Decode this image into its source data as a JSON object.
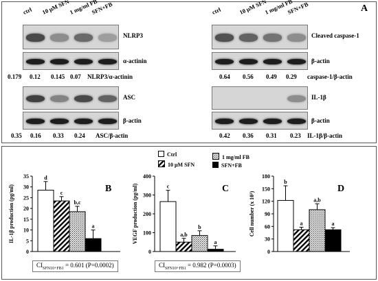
{
  "western": {
    "panel_letter": "A",
    "lanes_left": [
      "ctrl",
      "10 μM SFN",
      "1 mg/ml FB",
      "SFN+FB"
    ],
    "lanes_right": [
      "ctrl",
      "10 μM SFN",
      "1 mg/ml FB",
      "SFN+FB"
    ],
    "blots": [
      {
        "protein": "NLRP3",
        "intensity": [
          0.75,
          0.35,
          0.55,
          0.25
        ]
      },
      {
        "protein": "α-actinin",
        "intensity": [
          1,
          1,
          1,
          1
        ]
      },
      {
        "protein": "ASC",
        "intensity": [
          0.8,
          0.4,
          0.75,
          0.6
        ]
      },
      {
        "protein": "β-actin",
        "intensity": [
          1,
          1,
          1,
          1
        ]
      },
      {
        "protein": "Cleaved caspase-1",
        "intensity": [
          0.7,
          0.6,
          0.5,
          0.35
        ]
      },
      {
        "protein": "β-actin",
        "intensity": [
          1,
          1,
          1,
          1
        ]
      },
      {
        "protein": "IL-1β",
        "intensity": [
          0.0,
          0.0,
          0.0,
          0.35
        ]
      },
      {
        "protein": "β-actin",
        "intensity": [
          1,
          1,
          1,
          1
        ]
      }
    ],
    "ratios": [
      {
        "values": [
          "0.179",
          "0.12",
          "0.145",
          "0.07"
        ],
        "label": "NLRP3/α-actinin"
      },
      {
        "values": [
          "0.35",
          "0.16",
          "0.33",
          "0.24"
        ],
        "label": "ASC/β-actin"
      },
      {
        "values": [
          "0.64",
          "0.56",
          "0.49",
          "0.29"
        ],
        "label": "caspase-1/β-actin"
      },
      {
        "values": [
          "0.42",
          "0.36",
          "0.31",
          "0.23"
        ],
        "label": "IL-1β/β-actin"
      }
    ]
  },
  "legend": {
    "items": [
      {
        "label": "Ctrl",
        "pattern": "white"
      },
      {
        "label": "1 mg/ml FB",
        "pattern": "dots"
      },
      {
        "label": "10 μM SFN",
        "pattern": "hatch"
      },
      {
        "label": "SFN+FB",
        "pattern": "black"
      }
    ]
  },
  "chart_data": [
    {
      "type": "bar",
      "panel_letter": "B",
      "ylabel": "IL-1β production (pg/ml)",
      "categories": [
        "Ctrl",
        "10 μM SFN",
        "1 mg/ml FB",
        "SFN+FB"
      ],
      "values": [
        28.5,
        23.5,
        18.5,
        6
      ],
      "errors": [
        4,
        2,
        2.5,
        4
      ],
      "significance": [
        "d",
        "c",
        "b,c",
        "a"
      ],
      "ylim": [
        0,
        35
      ],
      "yticks": [
        "0",
        "5",
        "10",
        "15",
        "20",
        "25",
        "30",
        "35"
      ],
      "ci": {
        "prefix": "CI",
        "sub": "SFN10+FB1",
        "value": "= 0.601  (P=0.0002)"
      }
    },
    {
      "type": "bar",
      "panel_letter": "C",
      "ylabel": "VEGF production (pg/ml)",
      "categories": [
        "Ctrl",
        "10 μM SFN",
        "1 mg/ml FB",
        "SFN+FB"
      ],
      "values": [
        265,
        50,
        85,
        12
      ],
      "errors": [
        60,
        20,
        25,
        18
      ],
      "significance": [
        "c",
        "a,b",
        "b",
        "a"
      ],
      "ylim": [
        0,
        400
      ],
      "yticks": [
        "0",
        "100",
        "200",
        "300",
        "400"
      ],
      "ci": {
        "prefix": "CI",
        "sub": "SFN10+FB1",
        "value": "= 0.982  (P=0.0003)"
      }
    },
    {
      "type": "bar",
      "panel_letter": "D",
      "ylabel": "Cell number (x 10³)",
      "categories": [
        "Ctrl",
        "10 μM SFN",
        "1 mg/ml FB",
        "SFN+FB"
      ],
      "values": [
        122,
        52,
        100,
        52
      ],
      "errors": [
        35,
        6,
        14,
        5
      ],
      "significance": [
        "b",
        "a",
        "a,b",
        "a"
      ],
      "ylim": [
        0,
        180
      ],
      "yticks": [
        "0",
        "30",
        "60",
        "90",
        "120",
        "150",
        "180"
      ]
    }
  ]
}
